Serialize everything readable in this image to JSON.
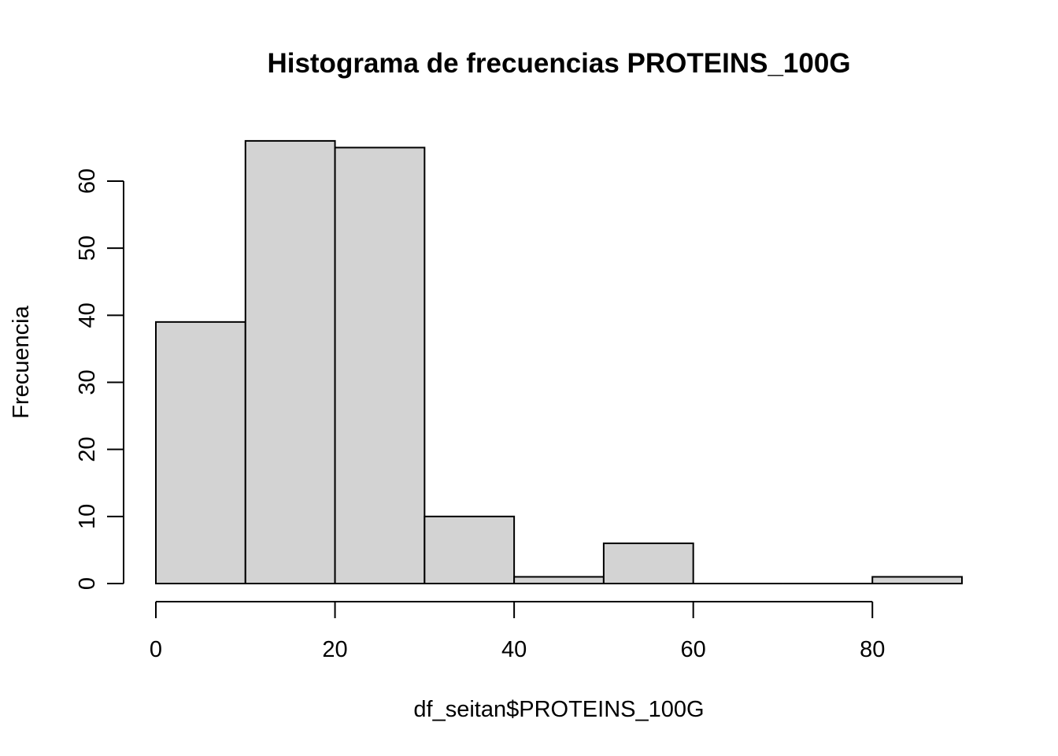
{
  "chart_data": {
    "type": "bar",
    "title": "Histograma de frecuencias PROTEINS_100G",
    "xlabel": "df_seitan$PROTEINS_100G",
    "ylabel": "Frecuencia",
    "bins": [
      {
        "start": 0,
        "end": 10,
        "count": 39
      },
      {
        "start": 10,
        "end": 20,
        "count": 66
      },
      {
        "start": 20,
        "end": 30,
        "count": 65
      },
      {
        "start": 30,
        "end": 40,
        "count": 10
      },
      {
        "start": 40,
        "end": 50,
        "count": 1
      },
      {
        "start": 50,
        "end": 60,
        "count": 6
      },
      {
        "start": 60,
        "end": 70,
        "count": 0
      },
      {
        "start": 70,
        "end": 80,
        "count": 0
      },
      {
        "start": 80,
        "end": 90,
        "count": 1
      }
    ],
    "xticks": [
      0,
      20,
      40,
      60,
      80
    ],
    "yticks": [
      0,
      10,
      20,
      30,
      40,
      50,
      60
    ],
    "xlim": [
      0,
      90
    ],
    "ylim": [
      0,
      66
    ],
    "bar_color": "#d3d3d3",
    "grid": false,
    "legend": "none"
  }
}
